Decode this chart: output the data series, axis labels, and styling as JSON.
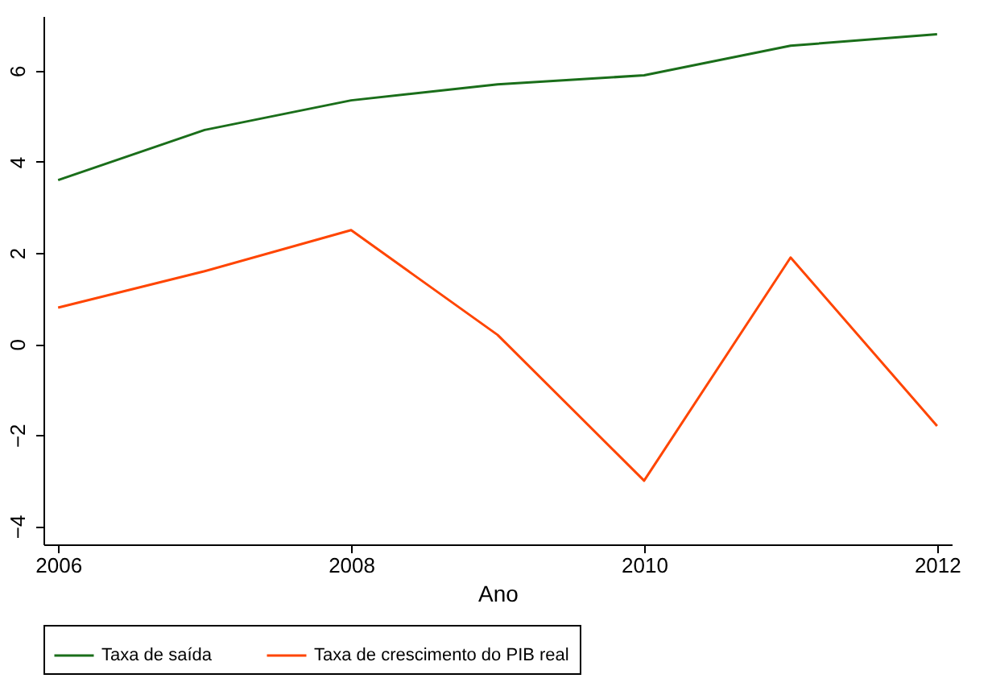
{
  "chart_data": {
    "type": "line",
    "xlabel": "Ano",
    "x": [
      2006,
      2007,
      2008,
      2009,
      2010,
      2011,
      2012
    ],
    "series": [
      {
        "name": "Taxa de saída",
        "color": "#1a6e1a",
        "values": [
          3.6,
          4.7,
          5.35,
          5.7,
          5.9,
          6.55,
          6.8
        ]
      },
      {
        "name": "Taxa de crescimento do PIB real",
        "color": "#ff4500",
        "values": [
          0.8,
          1.6,
          2.5,
          0.2,
          -3.0,
          1.9,
          -1.8
        ]
      }
    ],
    "xlim": [
      2005.9,
      2012.1
    ],
    "xticks": [
      2006,
      2008,
      2010,
      2012
    ],
    "ylim": [
      -4.4,
      7.2
    ],
    "yticks": [
      -4,
      -2,
      0,
      2,
      4,
      6
    ],
    "grid": false,
    "legend": "bottom",
    "marker": "none",
    "line_style": "solid"
  }
}
